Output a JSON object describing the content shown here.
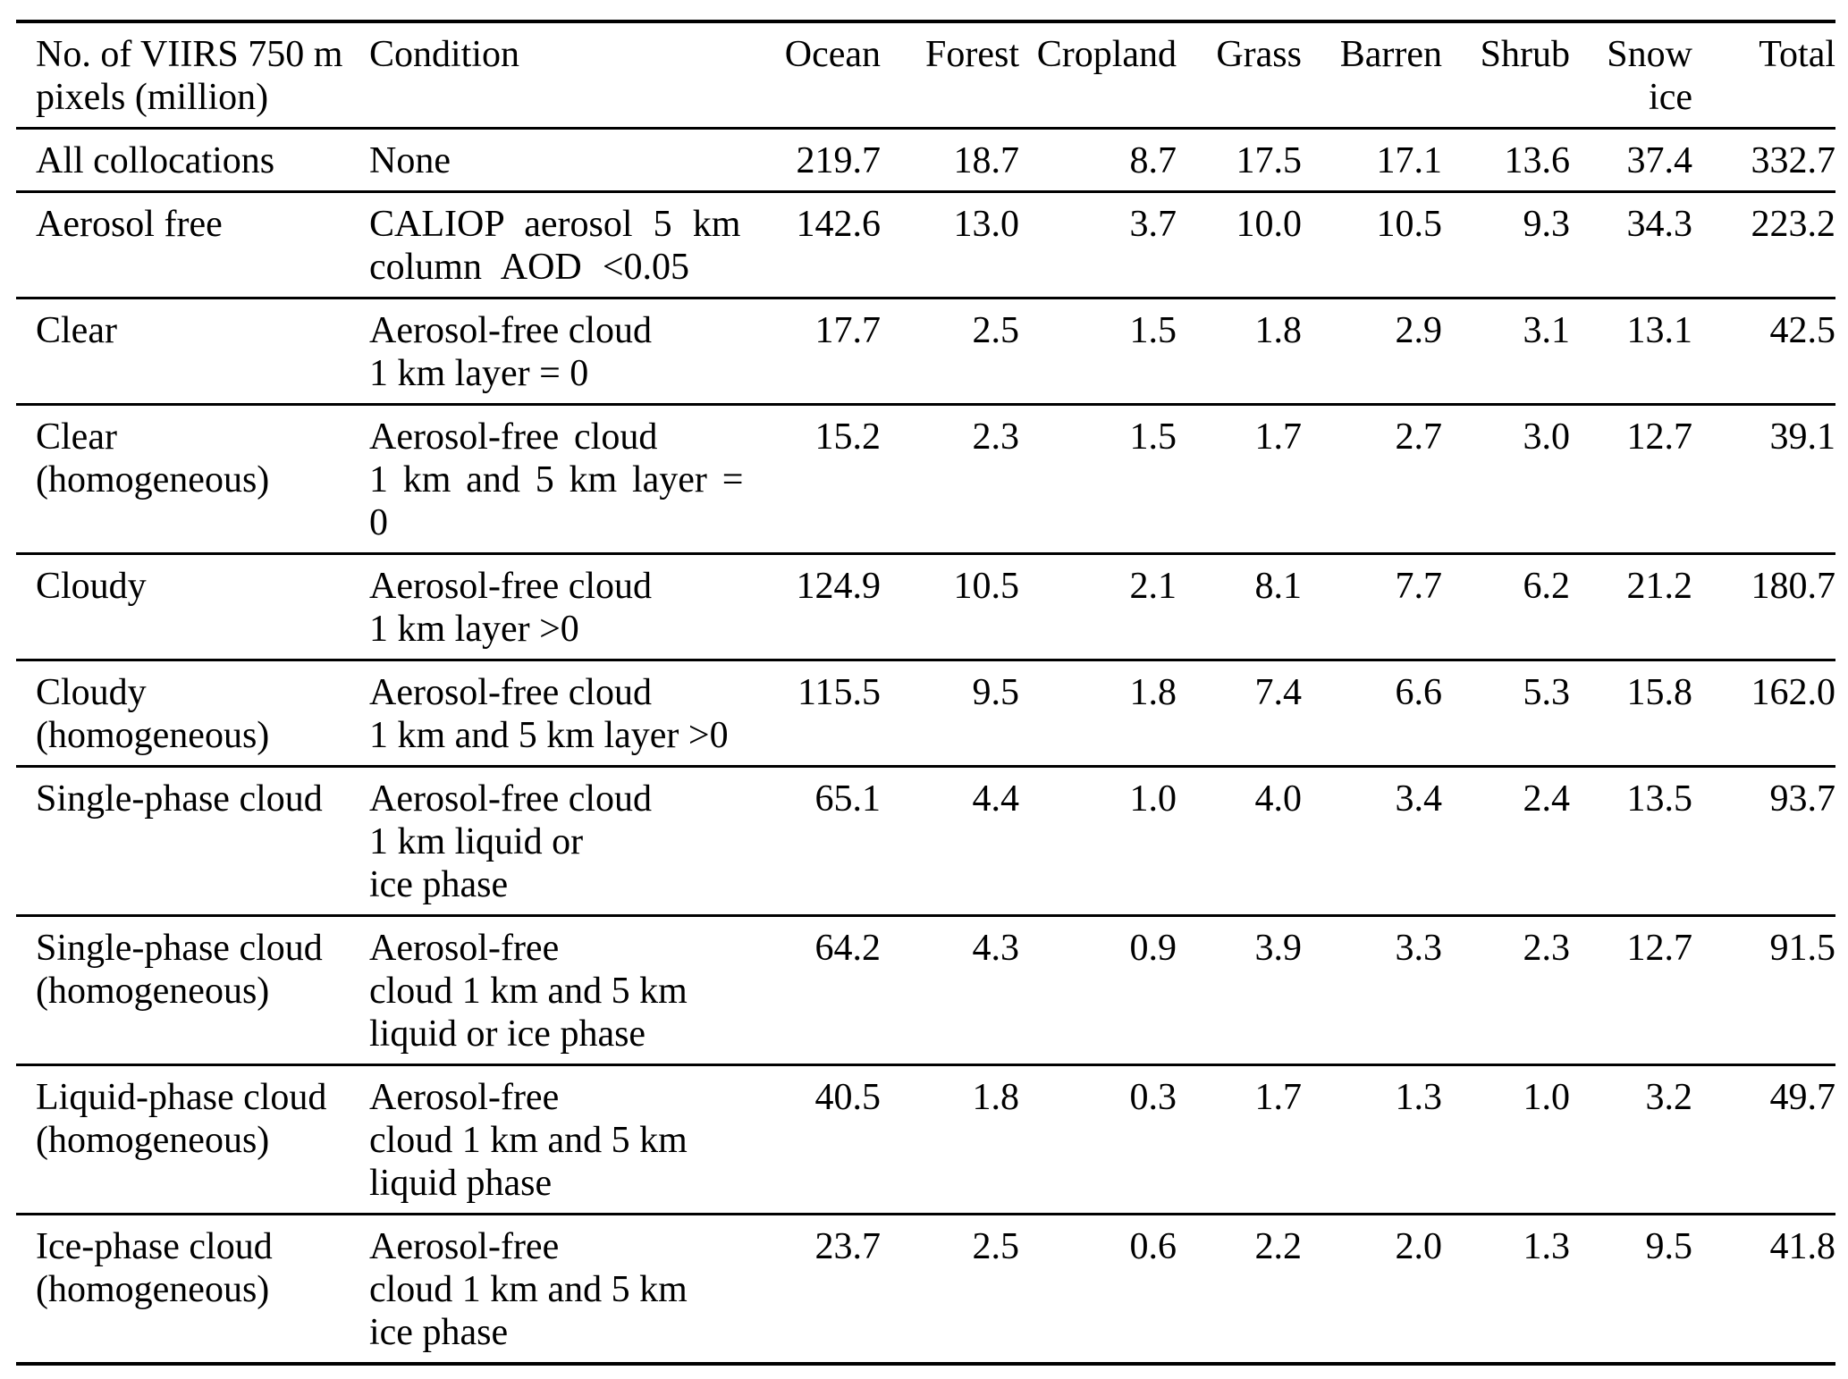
{
  "table": {
    "col1_header": "No. of VIIRS 750 m\npixels (million)",
    "col2_header": "Condition",
    "value_headers": [
      "Ocean",
      "Forest",
      "Cropland",
      "Grass",
      "Barren",
      "Shrub",
      "Snow\nice",
      "Total"
    ],
    "rows": [
      {
        "label": "All collocations",
        "condition": "None",
        "values": [
          "219.7",
          "18.7",
          "8.7",
          "17.5",
          "17.1",
          "13.6",
          "37.4",
          "332.7"
        ]
      },
      {
        "label": "Aerosol free",
        "condition": "CALIOP aerosol 5 km\ncolumn AOD <0.05",
        "values": [
          "142.6",
          "13.0",
          "3.7",
          "10.0",
          "10.5",
          "9.3",
          "34.3",
          "223.2"
        ]
      },
      {
        "label": "Clear",
        "condition": "Aerosol-free cloud\n1 km layer = 0",
        "values": [
          "17.7",
          "2.5",
          "1.5",
          "1.8",
          "2.9",
          "3.1",
          "13.1",
          "42.5"
        ]
      },
      {
        "label": "Clear\n(homogeneous)",
        "condition": "Aerosol-free cloud\n1 km and 5 km layer =\n0",
        "values": [
          "15.2",
          "2.3",
          "1.5",
          "1.7",
          "2.7",
          "3.0",
          "12.7",
          "39.1"
        ]
      },
      {
        "label": "Cloudy",
        "condition": "Aerosol-free cloud\n1 km layer >0",
        "values": [
          "124.9",
          "10.5",
          "2.1",
          "8.1",
          "7.7",
          "6.2",
          "21.2",
          "180.7"
        ]
      },
      {
        "label": "Cloudy\n(homogeneous)",
        "condition": "Aerosol-free cloud\n1 km and 5 km layer >0",
        "values": [
          "115.5",
          "9.5",
          "1.8",
          "7.4",
          "6.6",
          "5.3",
          "15.8",
          "162.0"
        ]
      },
      {
        "label": "Single-phase cloud",
        "condition": "Aerosol-free cloud\n1 km liquid or\nice phase",
        "values": [
          "65.1",
          "4.4",
          "1.0",
          "4.0",
          "3.4",
          "2.4",
          "13.5",
          "93.7"
        ]
      },
      {
        "label": "Single-phase cloud\n(homogeneous)",
        "condition": "Aerosol-free\ncloud 1 km and 5 km\nliquid or ice phase",
        "values": [
          "64.2",
          "4.3",
          "0.9",
          "3.9",
          "3.3",
          "2.3",
          "12.7",
          "91.5"
        ]
      },
      {
        "label": "Liquid-phase cloud\n(homogeneous)",
        "condition": "Aerosol-free\ncloud 1 km and 5 km\nliquid phase",
        "values": [
          "40.5",
          "1.8",
          "0.3",
          "1.7",
          "1.3",
          "1.0",
          "3.2",
          "49.7"
        ]
      },
      {
        "label": "Ice-phase cloud\n(homogeneous)",
        "condition": "Aerosol-free\ncloud 1 km and 5 km\nice phase",
        "values": [
          "23.7",
          "2.5",
          "0.6",
          "2.2",
          "2.0",
          "1.3",
          "9.5",
          "41.8"
        ]
      }
    ]
  }
}
